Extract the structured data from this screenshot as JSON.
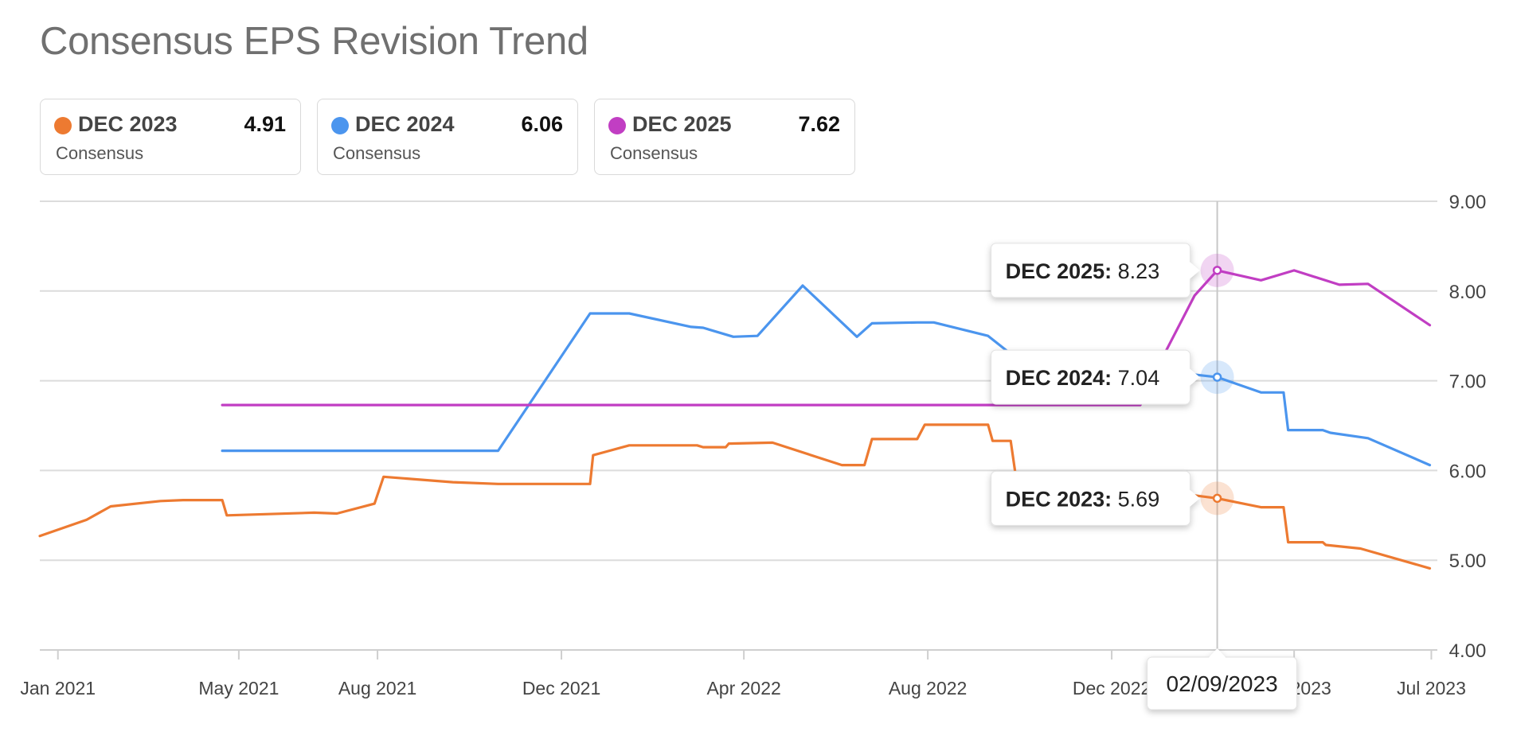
{
  "chart_data": {
    "type": "line",
    "title": "Consensus EPS Revision Trend",
    "xlabel": "",
    "ylabel": "",
    "ylim": [
      4.0,
      9.0
    ],
    "y_ticks": [
      "4.00",
      "5.00",
      "6.00",
      "7.00",
      "8.00",
      "9.00"
    ],
    "y_tick_values": [
      4,
      5,
      6,
      7,
      8,
      9
    ],
    "xlim": [
      "2020-12-20",
      "2023-07-05"
    ],
    "x_ticks": [
      {
        "date": "2021-01-01",
        "label": "Jan 2021"
      },
      {
        "date": "2021-05-01",
        "label": "May 2021"
      },
      {
        "date": "2021-08-01",
        "label": "Aug 2021"
      },
      {
        "date": "2021-12-01",
        "label": "Dec 2021"
      },
      {
        "date": "2022-04-01",
        "label": "Apr 2022"
      },
      {
        "date": "2022-08-01",
        "label": "Aug 2022"
      },
      {
        "date": "2022-12-01",
        "label": "Dec 2022"
      },
      {
        "date": "2023-04-01",
        "label": "Apr 2023"
      },
      {
        "date": "2023-07-01",
        "label": "Jul 2023"
      }
    ],
    "grid": true,
    "legend_position": "top",
    "series": [
      {
        "name": "DEC 2023",
        "color": "#ed7a31",
        "latest": "4.91",
        "sub": "Consensus",
        "points": [
          [
            "2020-12-20",
            5.27
          ],
          [
            "2021-01-20",
            5.45
          ],
          [
            "2021-02-05",
            5.6
          ],
          [
            "2021-03-10",
            5.66
          ],
          [
            "2021-03-25",
            5.67
          ],
          [
            "2021-04-20",
            5.67
          ],
          [
            "2021-04-23",
            5.5
          ],
          [
            "2021-06-20",
            5.53
          ],
          [
            "2021-07-05",
            5.52
          ],
          [
            "2021-07-30",
            5.63
          ],
          [
            "2021-08-05",
            5.93
          ],
          [
            "2021-09-20",
            5.87
          ],
          [
            "2021-10-20",
            5.85
          ],
          [
            "2021-12-20",
            5.85
          ],
          [
            "2021-12-22",
            6.17
          ],
          [
            "2022-01-15",
            6.28
          ],
          [
            "2022-03-01",
            6.28
          ],
          [
            "2022-03-05",
            6.26
          ],
          [
            "2022-03-15",
            6.26
          ],
          [
            "2022-03-20",
            6.26
          ],
          [
            "2022-03-22",
            6.3
          ],
          [
            "2022-04-20",
            6.31
          ],
          [
            "2022-06-05",
            6.06
          ],
          [
            "2022-06-20",
            6.06
          ],
          [
            "2022-06-25",
            6.35
          ],
          [
            "2022-07-25",
            6.35
          ],
          [
            "2022-07-30",
            6.51
          ],
          [
            "2022-08-15",
            6.51
          ],
          [
            "2022-09-10",
            6.51
          ],
          [
            "2022-09-13",
            6.33
          ],
          [
            "2022-09-25",
            6.33
          ],
          [
            "2022-09-28",
            5.98
          ],
          [
            "2023-02-09",
            5.69
          ],
          [
            "2023-03-10",
            5.59
          ],
          [
            "2023-03-25",
            5.59
          ],
          [
            "2023-03-28",
            5.2
          ],
          [
            "2023-04-20",
            5.2
          ],
          [
            "2023-04-22",
            5.17
          ],
          [
            "2023-05-15",
            5.13
          ],
          [
            "2023-06-30",
            4.91
          ]
        ]
      },
      {
        "name": "DEC 2024",
        "color": "#4b95ee",
        "latest": "6.06",
        "sub": "Consensus",
        "points": [
          [
            "2021-04-20",
            6.22
          ],
          [
            "2021-10-20",
            6.22
          ],
          [
            "2021-12-20",
            7.75
          ],
          [
            "2022-01-15",
            7.75
          ],
          [
            "2022-02-25",
            7.6
          ],
          [
            "2022-03-05",
            7.59
          ],
          [
            "2022-03-25",
            7.49
          ],
          [
            "2022-04-10",
            7.5
          ],
          [
            "2022-05-10",
            8.06
          ],
          [
            "2022-06-15",
            7.49
          ],
          [
            "2022-06-25",
            7.64
          ],
          [
            "2022-07-25",
            7.65
          ],
          [
            "2022-08-05",
            7.65
          ],
          [
            "2022-09-10",
            7.5
          ],
          [
            "2022-09-25",
            7.3
          ],
          [
            "2023-02-09",
            7.04
          ],
          [
            "2023-03-10",
            6.87
          ],
          [
            "2023-03-25",
            6.87
          ],
          [
            "2023-03-28",
            6.45
          ],
          [
            "2023-04-20",
            6.45
          ],
          [
            "2023-04-25",
            6.42
          ],
          [
            "2023-05-20",
            6.36
          ],
          [
            "2023-06-30",
            6.06
          ]
        ]
      },
      {
        "name": "DEC 2025",
        "color": "#c13ec3",
        "latest": "7.62",
        "sub": "Consensus",
        "points": [
          [
            "2021-04-20",
            6.73
          ],
          [
            "2022-12-20",
            6.73
          ],
          [
            "2023-01-05",
            7.3
          ],
          [
            "2023-01-25",
            7.95
          ],
          [
            "2023-02-09",
            8.23
          ],
          [
            "2023-03-10",
            8.12
          ],
          [
            "2023-04-01",
            8.23
          ],
          [
            "2023-05-01",
            8.07
          ],
          [
            "2023-05-20",
            8.08
          ],
          [
            "2023-06-30",
            7.62
          ]
        ]
      }
    ],
    "hover": {
      "date": "02/09/2023",
      "iso": "2023-02-09",
      "tooltips": [
        {
          "series": "DEC 2025",
          "label": "DEC 2025:",
          "value": "8.23"
        },
        {
          "series": "DEC 2024",
          "label": "DEC 2024:",
          "value": "7.04"
        },
        {
          "series": "DEC 2023",
          "label": "DEC 2023:",
          "value": "5.69"
        }
      ]
    }
  }
}
